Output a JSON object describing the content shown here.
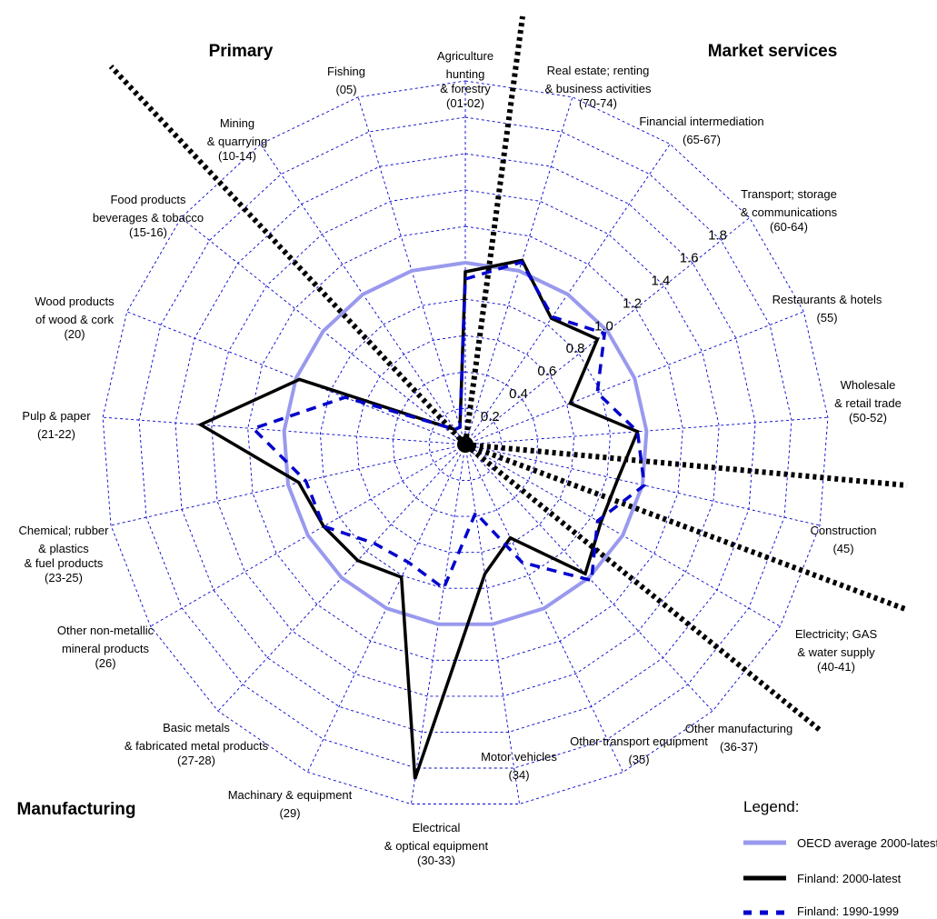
{
  "chart_data": {
    "type": "radar",
    "title": "",
    "rmax": 2.0,
    "ring_step": 0.2,
    "tick_labels": [
      "0.2",
      "0.4",
      "0.6",
      "0.8",
      "1.0",
      "1.2",
      "1.4",
      "1.6",
      "1.8"
    ],
    "categories": [
      {
        "lines": [
          "Agriculture",
          "hunting",
          "& forestry",
          "(01-02)"
        ]
      },
      {
        "lines": [
          "Real estate; renting",
          "& business activities",
          "(70-74)"
        ]
      },
      {
        "lines": [
          "Financial intermediation",
          "(65-67)"
        ]
      },
      {
        "lines": [
          "Transport; storage",
          "& communications",
          "(60-64)"
        ]
      },
      {
        "lines": [
          "Restaurants & hotels",
          "(55)"
        ]
      },
      {
        "lines": [
          "Wholesale",
          "& retail trade",
          "(50-52)"
        ]
      },
      {
        "lines": [
          "Construction",
          "(45)"
        ]
      },
      {
        "lines": [
          "Electricity; GAS",
          "& water supply",
          "(40-41)"
        ]
      },
      {
        "lines": [
          "Other manufacturing",
          "(36-37)"
        ]
      },
      {
        "lines": [
          "Other transport equipment",
          "(35)"
        ]
      },
      {
        "lines": [
          "Motor vehicles",
          "(34)"
        ]
      },
      {
        "lines": [
          "Electrical",
          "& optical equipment",
          "(30-33)"
        ]
      },
      {
        "lines": [
          "Machinary & equipment",
          "(29)"
        ]
      },
      {
        "lines": [
          "Basic metals",
          "& fabricated metal products",
          "(27-28)"
        ]
      },
      {
        "lines": [
          "Other non-metallic",
          "mineral products",
          "(26)"
        ]
      },
      {
        "lines": [
          "Chemical; rubber",
          "& plastics",
          "& fuel products",
          "(23-25)"
        ]
      },
      {
        "lines": [
          "Pulp & paper",
          "(21-22)"
        ]
      },
      {
        "lines": [
          "Wood products",
          "of wood & cork",
          "(20)"
        ]
      },
      {
        "lines": [
          "Food products",
          "beverages & tobacco",
          "(15-16)"
        ]
      },
      {
        "lines": [
          "Mining",
          "& quarrying",
          "(10-14)"
        ]
      },
      {
        "lines": [
          "Fishing",
          "(05)"
        ]
      }
    ],
    "series": [
      {
        "name": "OECD average 2000-latest",
        "color": "#9999ee",
        "style": "solid",
        "values": [
          1,
          1,
          1,
          1,
          1,
          1,
          1,
          1,
          1,
          1,
          1,
          1,
          1,
          1,
          1,
          1,
          1,
          1,
          1,
          1,
          1
        ]
      },
      {
        "name": "Finland: 2000-latest",
        "color": "#000000",
        "style": "solid",
        "values": [
          0.95,
          1.06,
          0.84,
          0.93,
          0.62,
          0.95,
          0.86,
          0.86,
          0.97,
          0.57,
          0.72,
          1.86,
          0.81,
          0.87,
          0.9,
          0.94,
          1.46,
          0.98,
          0.17,
          0.1,
          0.1
        ]
      },
      {
        "name": "Finland: 1990-1999",
        "color": "#0000cc",
        "style": "dashed",
        "values": [
          0.91,
          1.05,
          0.85,
          0.98,
          0.78,
          0.95,
          1.01,
          0.84,
          1.02,
          0.72,
          0.38,
          0.8,
          0.72,
          0.74,
          0.9,
          0.9,
          1.17,
          0.71,
          0.17,
          0.1,
          0.1
        ]
      }
    ],
    "sector_groups": [
      "Primary",
      "Market services",
      "Manufacturing"
    ],
    "legend": {
      "title": "Legend:",
      "position": "bottom-right"
    }
  }
}
